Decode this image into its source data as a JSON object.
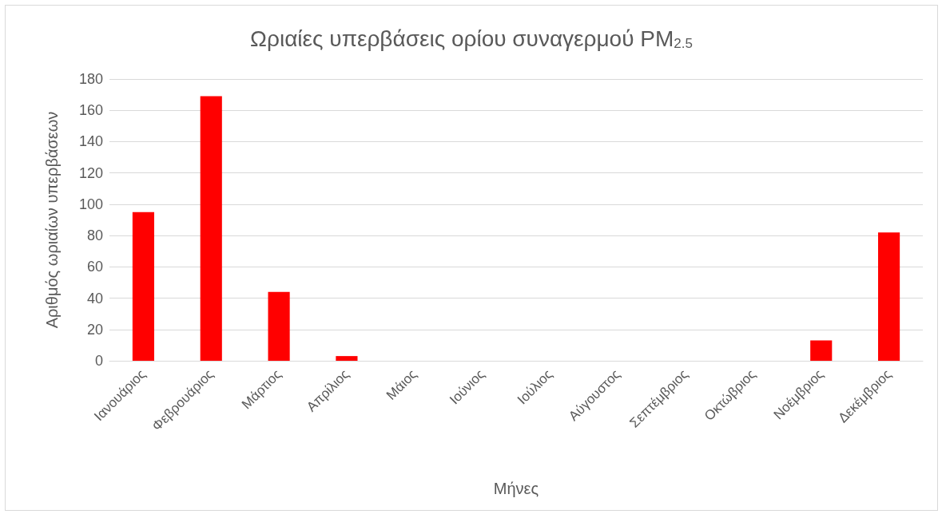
{
  "chart_data": {
    "type": "bar",
    "title": "Ωριαίες υπερβάσεις ορίου συναγερμού PM$_{2.5}$",
    "xlabel": "Μήνες",
    "ylabel": "Αριθμός ωριαίων υπερβάσεων",
    "categories": [
      "Ιανουάριος",
      "Φεβρουάριος",
      "Μάρτιος",
      "Απρίλιος",
      "Μάιος",
      "Ιούνιος",
      "Ιούλιος",
      "Αύγουστος",
      "Σεπτέμβριος",
      "Οκτώβριος",
      "Νοέμβριος",
      "Δεκέμβριος"
    ],
    "values": [
      95,
      169,
      44,
      3,
      0,
      0,
      0,
      0,
      0,
      0,
      13,
      82
    ],
    "color": "#ff0000",
    "ylim": [
      0,
      180
    ],
    "yticks": [
      0,
      20,
      40,
      60,
      80,
      100,
      120,
      140,
      160,
      180
    ],
    "grid": "y"
  }
}
